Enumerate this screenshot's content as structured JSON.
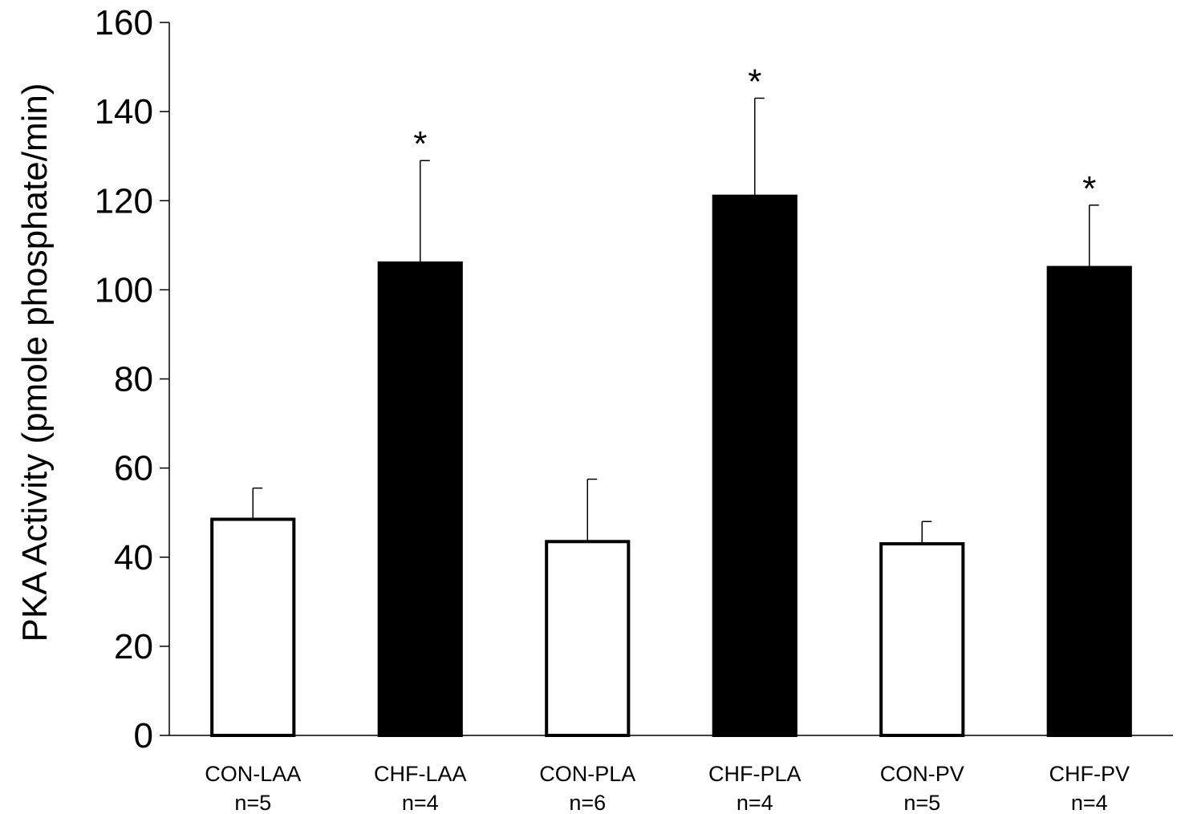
{
  "chart_data": {
    "type": "bar",
    "title": "",
    "xlabel": "",
    "ylabel": "PKA Activity (pmole phosphate/min)",
    "ylim": [
      0,
      160
    ],
    "yticks": [
      0,
      20,
      40,
      60,
      80,
      100,
      120,
      140,
      160
    ],
    "grid": false,
    "legend": "none",
    "categories": [
      {
        "label": "CON-LAA",
        "n": "n=5"
      },
      {
        "label": "CHF-LAA",
        "n": "n=4"
      },
      {
        "label": "CON-PLA",
        "n": "n=6"
      },
      {
        "label": "CHF-PLA",
        "n": "n=4"
      },
      {
        "label": "CON-PV",
        "n": "n=5"
      },
      {
        "label": "CHF-PV",
        "n": "n=4"
      }
    ],
    "values": [
      48.5,
      106,
      43.5,
      121,
      43,
      105
    ],
    "errors": [
      7,
      23,
      14,
      22,
      5,
      14
    ],
    "significance": [
      "",
      "*",
      "",
      "*",
      "",
      "*"
    ],
    "fills": [
      "#ffffff",
      "#000000",
      "#ffffff",
      "#000000",
      "#ffffff",
      "#000000"
    ],
    "colors": {
      "bar_edge": "#000000",
      "axis": "#000000"
    }
  }
}
